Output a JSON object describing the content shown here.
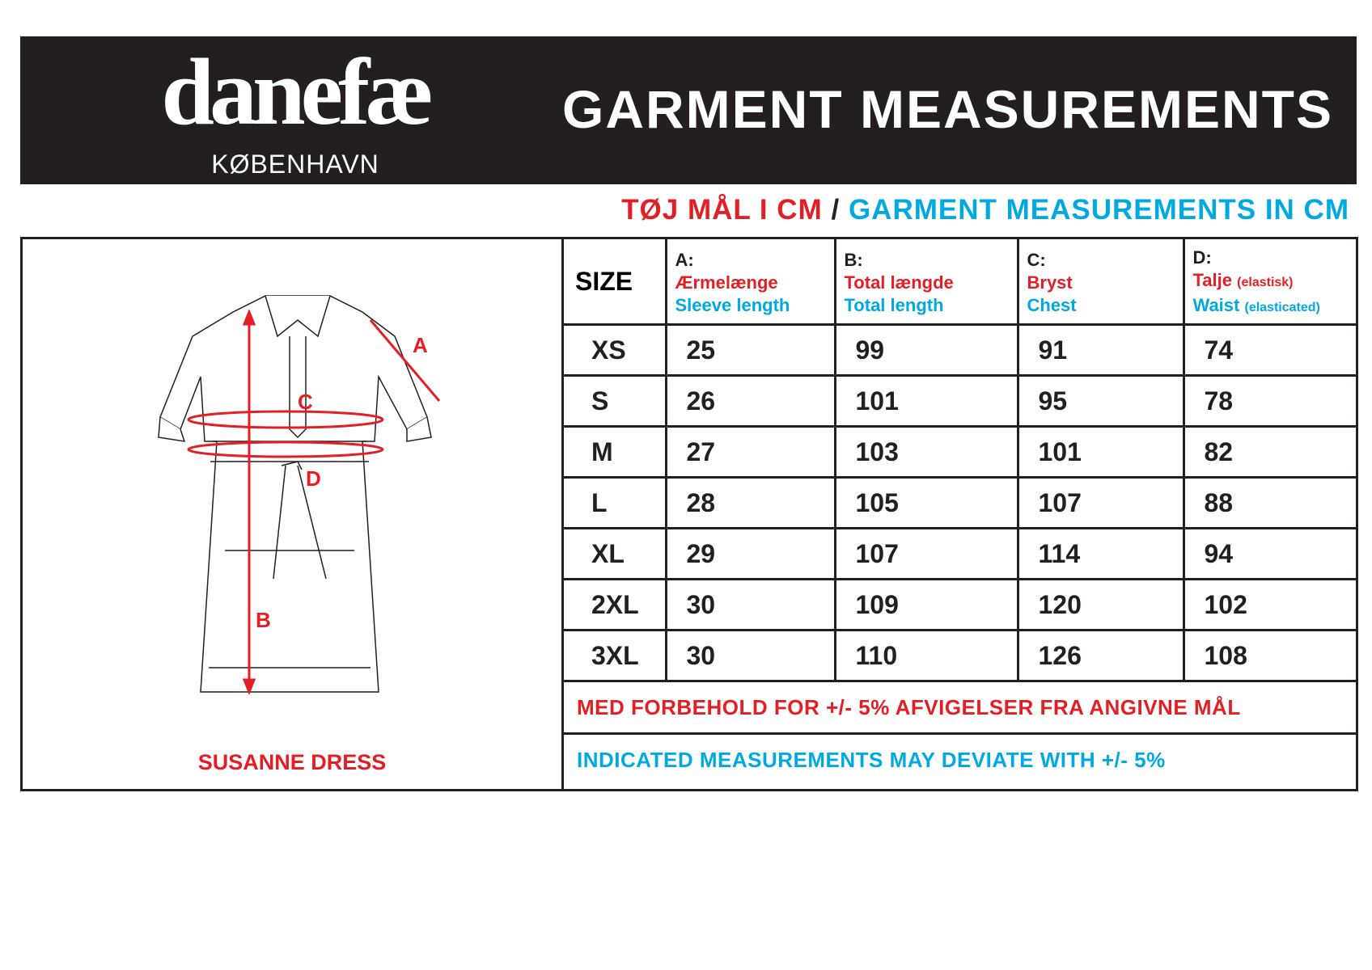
{
  "brand": {
    "name": "danefæ",
    "city": "KØBENHAVN"
  },
  "title": "GARMENT MEASUREMENTS",
  "subtitle": {
    "danish": "TØJ MÅL I CM",
    "separator": "/",
    "english": "GARMENT MEASUREMENTS IN CM"
  },
  "product": {
    "name": "SUSANNE DRESS",
    "markers": [
      "A",
      "B",
      "C",
      "D"
    ]
  },
  "table": {
    "size_header": "SIZE",
    "columns": [
      {
        "letter": "A:",
        "danish": "Ærmelænge",
        "danish_note": "",
        "english": "Sleeve length",
        "english_note": ""
      },
      {
        "letter": "B:",
        "danish": "Total længde",
        "danish_note": "",
        "english": "Total length",
        "english_note": ""
      },
      {
        "letter": "C:",
        "danish": "Bryst",
        "danish_note": "",
        "english": "Chest",
        "english_note": ""
      },
      {
        "letter": "D:",
        "danish": "Talje",
        "danish_note": "(elastisk)",
        "english": "Waist",
        "english_note": "(elasticated)"
      }
    ],
    "rows": [
      {
        "size": "XS",
        "values": [
          "25",
          "99",
          "91",
          "74"
        ]
      },
      {
        "size": "S",
        "values": [
          "26",
          "101",
          "95",
          "78"
        ]
      },
      {
        "size": "M",
        "values": [
          "27",
          "103",
          "101",
          "82"
        ]
      },
      {
        "size": "L",
        "values": [
          "28",
          "105",
          "107",
          "88"
        ]
      },
      {
        "size": "XL",
        "values": [
          "29",
          "107",
          "114",
          "94"
        ]
      },
      {
        "size": "2XL",
        "values": [
          "30",
          "109",
          "120",
          "102"
        ]
      },
      {
        "size": "3XL",
        "values": [
          "30",
          "110",
          "126",
          "108"
        ]
      }
    ],
    "note_danish": "MED FORBEHOLD FOR +/- 5% AFVIGELSER FRA ANGIVNE MÅL",
    "note_english": "INDICATED MEASUREMENTS MAY DEVIATE WITH +/- 5%"
  },
  "colors": {
    "red": "#e31e24",
    "blue": "#00a9e0",
    "dark": "#231f20"
  }
}
